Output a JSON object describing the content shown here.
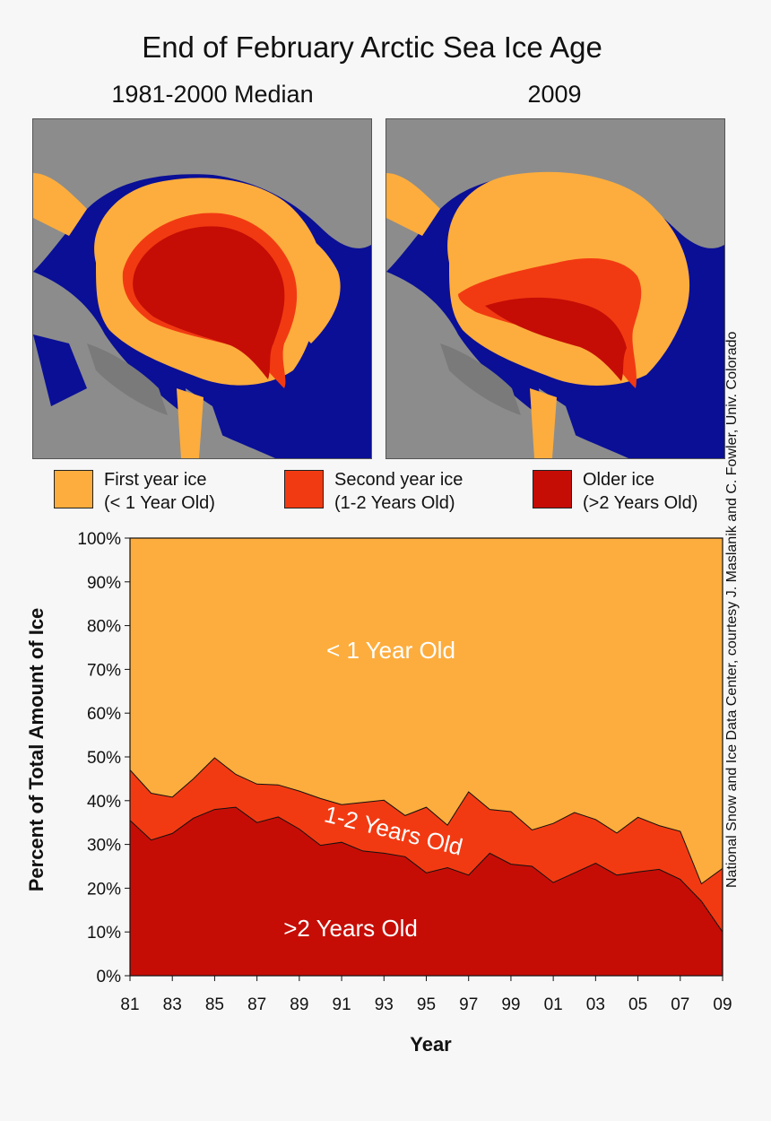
{
  "title": "End of February Arctic Sea Ice Age",
  "maps": [
    {
      "title": "1981-2000 Median"
    },
    {
      "title": "2009"
    }
  ],
  "legend": [
    {
      "line1": "First year ice",
      "line2": "(< 1 Year Old)",
      "color": "#fdad3d"
    },
    {
      "line1": "Second year ice",
      "line2": "(1-2 Years Old)",
      "color": "#f23a12"
    },
    {
      "line1": "Older ice",
      "line2": "(>2 Years Old)",
      "color": "#c50d06"
    }
  ],
  "credit": "National Snow and Ice Data Center, courtesy J. Maslanik and C. Fowler, Univ. Colorado",
  "colors": {
    "first_year": "#fdad3d",
    "second_year": "#f23a12",
    "older": "#c50d06",
    "ocean": "#0a0f96",
    "land": "#8c8c8c"
  },
  "chart_data": {
    "type": "area",
    "stacked": true,
    "xlabel": "Year",
    "ylabel": "Percent of Total Amount of Ice",
    "ylim": [
      0,
      100
    ],
    "yticks": [
      "0%",
      "10%",
      "20%",
      "30%",
      "40%",
      "50%",
      "60%",
      "70%",
      "80%",
      "90%",
      "100%"
    ],
    "xticks": [
      "81",
      "83",
      "85",
      "87",
      "89",
      "91",
      "93",
      "95",
      "97",
      "99",
      "01",
      "03",
      "05",
      "07",
      "09"
    ],
    "x": [
      1981,
      1982,
      1983,
      1984,
      1985,
      1986,
      1987,
      1988,
      1989,
      1990,
      1991,
      1992,
      1993,
      1994,
      1995,
      1996,
      1997,
      1998,
      1999,
      2000,
      2001,
      2002,
      2003,
      2004,
      2005,
      2006,
      2007,
      2008,
      2009
    ],
    "older_pct": [
      35.5,
      31,
      32.5,
      36,
      38,
      38.5,
      35,
      36.3,
      33.5,
      29.8,
      30.5,
      28.5,
      28,
      27.2,
      23.5,
      24.7,
      23,
      28,
      25.5,
      25,
      21.3,
      23.5,
      25.7,
      23,
      23.7,
      24.3,
      22,
      17,
      10
    ],
    "total_pct": [
      47,
      41.7,
      40.8,
      45,
      49.8,
      46,
      43.8,
      43.6,
      42.2,
      40.5,
      39.1,
      39.6,
      40.1,
      36.6,
      38.5,
      34.4,
      42,
      38,
      37.5,
      33.3,
      34.8,
      37.3,
      35.7,
      32.6,
      36.2,
      34.3,
      33,
      21,
      24.5
    ],
    "annotations": {
      "first_year": "< 1 Year Old",
      "second_year": "1-2 Years Old",
      "older": ">2 Years Old"
    }
  }
}
